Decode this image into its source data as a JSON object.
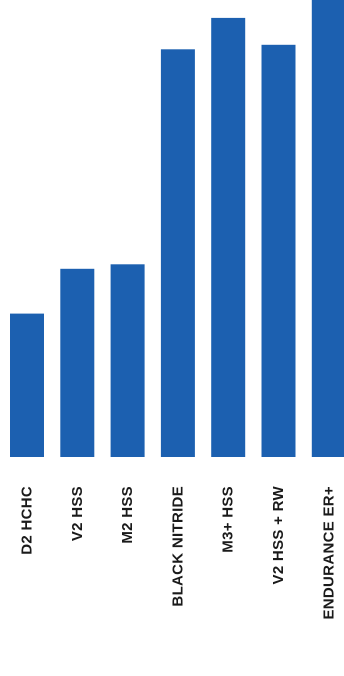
{
  "chart_data": {
    "type": "bar",
    "orientation": "vertical",
    "categories": [
      "D2 HCHC",
      "V2 HSS",
      "M2 HSS",
      "BLACK NITRIDE",
      "M3+ HSS",
      "V2 HSS + RW",
      "ENDURANCE ER+"
    ],
    "values": [
      32,
      42,
      43,
      91,
      98,
      92,
      102
    ],
    "ylim": [
      0,
      102
    ],
    "title": "",
    "xlabel": "",
    "ylabel": "",
    "grid": false,
    "legend": false,
    "tick_label_rotation": "vertical",
    "colors": {
      "bar": "#1c60b0",
      "label": "#1a1a1a",
      "background": "#ffffff"
    }
  }
}
